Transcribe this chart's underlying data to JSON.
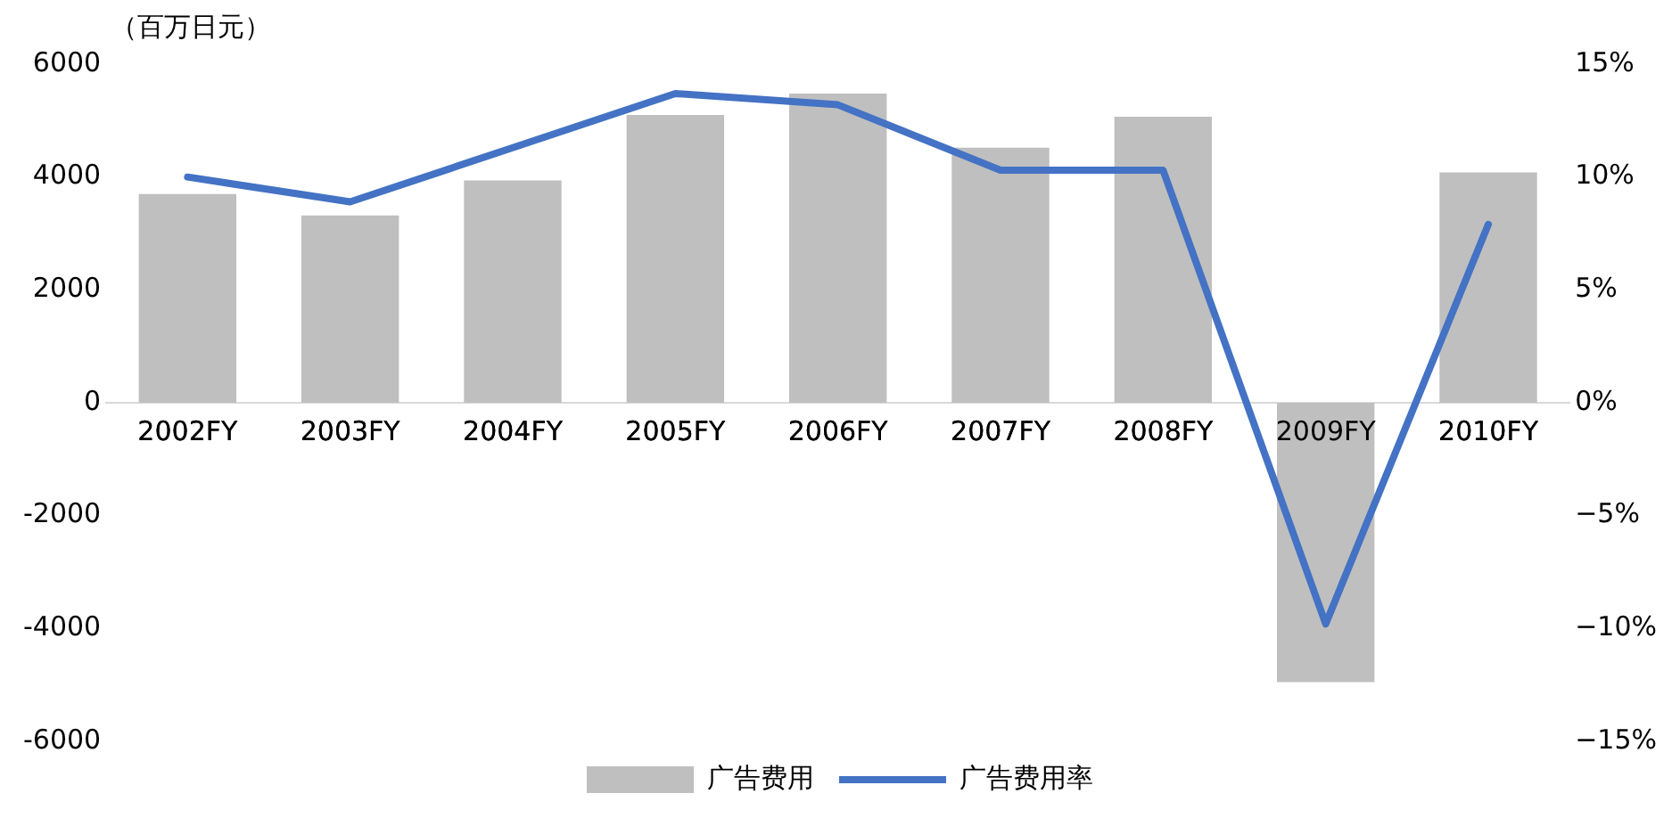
{
  "chart_data": {
    "type": "bar",
    "ylabel": "（百万日元）",
    "categories": [
      "2002FY",
      "2003FY",
      "2004FY",
      "2005FY",
      "2006FY",
      "2007FY",
      "2008FY",
      "2009FY",
      "2010FY"
    ],
    "series": [
      {
        "name": "广告费用",
        "color": "#bfbfbf",
        "values": [
          3700,
          3320,
          3940,
          5100,
          5480,
          4520,
          5070,
          -4950,
          4080
        ]
      },
      {
        "name": "广告费用率",
        "type": "line",
        "axis": "y2",
        "color": "#4472c4",
        "values": [
          10.0,
          8.9,
          11.3,
          13.7,
          13.2,
          10.3,
          10.3,
          -9.8,
          7.9
        ]
      }
    ],
    "ylim": [
      -6000,
      6000
    ],
    "yticks": [
      -6000,
      -4000,
      -2000,
      0,
      2000,
      4000,
      6000
    ],
    "y2lim": [
      -15,
      15
    ],
    "y2ticks": [
      {
        "value": -15,
        "label": "−15%"
      },
      {
        "value": -10,
        "label": "−10%"
      },
      {
        "value": -5,
        "label": "−5%"
      },
      {
        "value": 0,
        "label": "0%"
      },
      {
        "value": 5,
        "label": "5%"
      },
      {
        "value": 10,
        "label": "10%"
      },
      {
        "value": 15,
        "label": "15%"
      }
    ],
    "grid": false,
    "legend": "bottom",
    "marker": "none",
    "line_style": "solid"
  }
}
